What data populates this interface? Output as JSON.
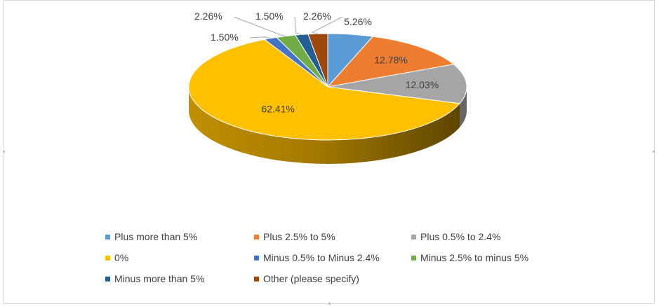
{
  "chart_data": {
    "type": "pie",
    "style": "3d",
    "categories": [
      "Plus more than 5%",
      "Plus 2.5% to 5%",
      "Plus 0.5% to 2.4%",
      "0%",
      "Minus 0.5% to Minus 2.4%",
      "Minus 2.5% to minus 5%",
      "Minus more than 5%",
      "Other (please specify)"
    ],
    "values": [
      5.26,
      12.78,
      12.03,
      62.41,
      1.5,
      2.26,
      1.5,
      2.26
    ],
    "data_labels": [
      "5.26%",
      "12.78%",
      "12.03%",
      "62.41%",
      "1.50%",
      "2.26%",
      "1.50%",
      "2.26%"
    ],
    "colors": [
      "#5b9bd5",
      "#ed7d31",
      "#a5a5a5",
      "#ffc000",
      "#4472c4",
      "#70ad47",
      "#255e91",
      "#9e480e"
    ],
    "legend_position": "bottom"
  }
}
